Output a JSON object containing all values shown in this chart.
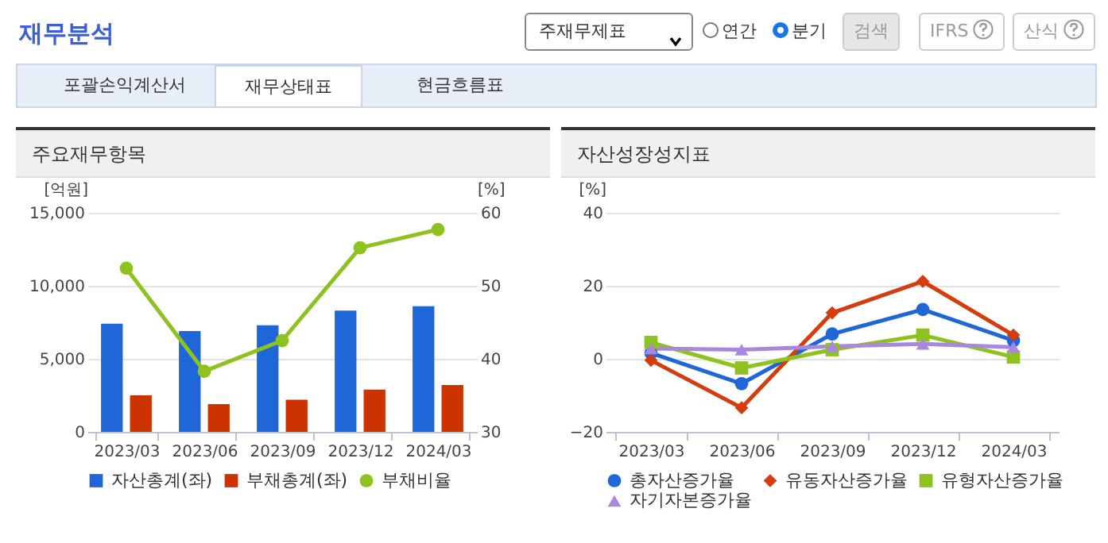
{
  "chart_data": [
    {
      "type": "bar",
      "title": "주요재무항목",
      "ylabel": "[억원]",
      "y2label": "[%]",
      "annotations": [
        "재무분석",
        "주재무제표",
        "연간",
        "분기",
        "검색",
        "IFRS",
        "산식",
        "포괄손익계산서",
        "재무상태표",
        "현금흐름표"
      ],
      "categories": [
        "2023/03",
        "2023/06",
        "2023/09",
        "2023/12",
        "2024/03"
      ],
      "series": [
        {
          "name": "자산총계(좌)",
          "color": "#1f66d9",
          "values": [
            7400,
            6900,
            7300,
            8300,
            8600
          ]
        },
        {
          "name": "부채총계(좌)",
          "color": "#cc3300",
          "values": [
            2500,
            1900,
            2200,
            2900,
            3200
          ]
        },
        {
          "name": "부채비율",
          "type": "line",
          "axis": "y2",
          "color": "#8dc21f",
          "marker": "circle",
          "values": [
            52.4,
            38.3,
            42.5,
            55.2,
            57.7
          ]
        }
      ],
      "ylim": [
        0,
        15000
      ],
      "yticks": [
        0,
        {
          "value": 5000,
          "label": "5,000"
        },
        {
          "value": 10000,
          "label": "10,000"
        },
        {
          "value": 15000,
          "label": "15,000"
        }
      ],
      "y2lim": [
        30,
        60
      ],
      "y2ticks": [
        30,
        40,
        50,
        60
      ],
      "grid": "y",
      "legend": "bottom"
    },
    {
      "type": "line",
      "title": "자산성장성지표",
      "ylabel": "[%]",
      "categories": [
        "2023/03",
        "2023/06",
        "2023/09",
        "2023/12",
        "2024/03"
      ],
      "series": [
        {
          "name": "총자산증가율",
          "color": "#1f66d9",
          "marker": "circle",
          "values": [
            1.6,
            -6.8,
            6.8,
            13.5,
            5.0
          ]
        },
        {
          "name": "유동자산증가율",
          "color": "#d63d0e",
          "marker": "diamond",
          "values": [
            -0.4,
            -13.4,
            12.6,
            21.2,
            6.5
          ]
        },
        {
          "name": "유형자산증가율",
          "color": "#8dc21f",
          "marker": "square",
          "values": [
            4.5,
            -2.5,
            2.5,
            6.5,
            0.5
          ]
        },
        {
          "name": "자기자본증가율",
          "color": "#a986e0",
          "marker": "triangle",
          "values": [
            2.8,
            2.5,
            3.4,
            4.1,
            3.2
          ]
        }
      ],
      "ylim": [
        -20,
        40
      ],
      "yticks": [
        -20,
        0,
        20,
        40
      ],
      "grid": "y",
      "legend": "bottom"
    }
  ]
}
